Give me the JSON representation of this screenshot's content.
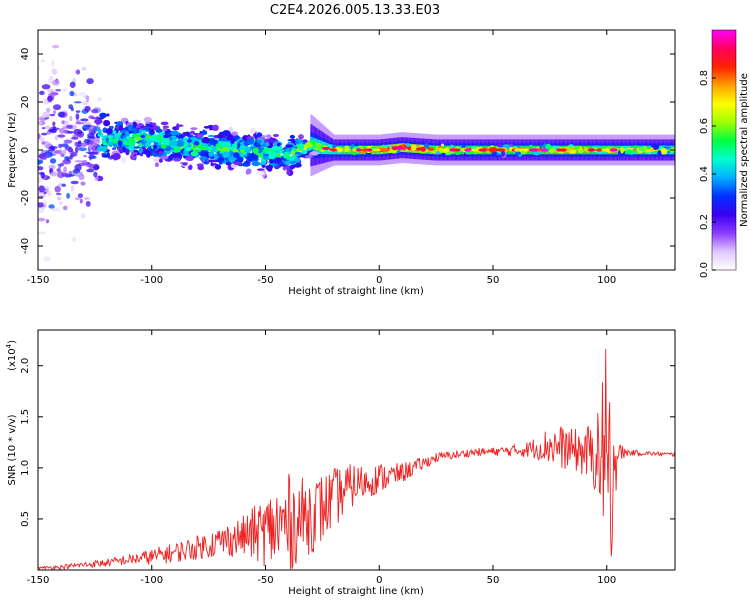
{
  "title": "C2E4.2026.005.13.33.E03",
  "chart_data": [
    {
      "type": "heatmap",
      "xlabel": "Height of straight line (km)",
      "ylabel": "Frequency (Hz)",
      "xlim": [
        -150,
        130
      ],
      "ylim": [
        -50,
        50
      ],
      "xticks": [
        -150,
        -100,
        -50,
        0,
        50,
        100
      ],
      "yticks": [
        -40,
        -20,
        0,
        20,
        40
      ],
      "colorbar": {
        "label": "Normalized spectral amplitude",
        "range": [
          0,
          1
        ],
        "ticks": [
          "0.0",
          "0.2",
          "0.4",
          "0.6",
          "0.8"
        ],
        "colors": [
          "#ffffff",
          "#e0c8ff",
          "#8a3cff",
          "#3a00f0",
          "#0030ff",
          "#00b0ff",
          "#00ffd0",
          "#00ff40",
          "#a0ff00",
          "#ffff00",
          "#ffa000",
          "#ff2000",
          "#ff0060",
          "#ff00ff"
        ]
      },
      "description_points": [
        {
          "x": -145,
          "center": 0,
          "spread": 45,
          "level": 0.25
        },
        {
          "x": -130,
          "center": 3,
          "spread": 38,
          "level": 0.3
        },
        {
          "x": -120,
          "center": 5,
          "spread": 10,
          "level": 0.45
        },
        {
          "x": -100,
          "center": 4,
          "spread": 9,
          "level": 0.5
        },
        {
          "x": -80,
          "center": 1,
          "spread": 9,
          "level": 0.5
        },
        {
          "x": -60,
          "center": 0,
          "spread": 9,
          "level": 0.5
        },
        {
          "x": -40,
          "center": -2,
          "spread": 9,
          "level": 0.5
        },
        {
          "x": -30,
          "center": 2,
          "spread": 4,
          "level": 0.6
        },
        {
          "x": -20,
          "center": 0,
          "spread": 2,
          "level": 0.7
        },
        {
          "x": 0,
          "center": 0,
          "spread": 2,
          "level": 0.85
        },
        {
          "x": 10,
          "center": 1,
          "spread": 2,
          "level": 0.9
        },
        {
          "x": 25,
          "center": 0,
          "spread": 2,
          "level": 0.8
        },
        {
          "x": 50,
          "center": 0,
          "spread": 2,
          "level": 0.75
        },
        {
          "x": 75,
          "center": 0,
          "spread": 2,
          "level": 0.8
        },
        {
          "x": 100,
          "center": 0,
          "spread": 2,
          "level": 0.75
        },
        {
          "x": 130,
          "center": 0,
          "spread": 2,
          "level": 0.7
        }
      ]
    },
    {
      "type": "line",
      "xlabel": "Height of straight line (km)",
      "ylabel": "SNR (10 * v/v)",
      "yscale_label": "(x10",
      "yscale_exponent": "4",
      "xlim": [
        -150,
        130
      ],
      "ylim": [
        0,
        2.35
      ],
      "xticks": [
        -150,
        -100,
        -50,
        0,
        50,
        100
      ],
      "yticks": [
        "0.5",
        "1.0",
        "1.5",
        "2.0"
      ],
      "series": [
        {
          "color": "#ee2222",
          "x": [
            -150,
            -140,
            -130,
            -120,
            -110,
            -100,
            -90,
            -80,
            -70,
            -60,
            -50,
            -40,
            -35,
            -30,
            -25,
            -20,
            -15,
            -10,
            -5,
            0,
            5,
            10,
            15,
            20,
            25,
            30,
            35,
            40,
            50,
            60,
            65,
            70,
            75,
            80,
            85,
            90,
            95,
            100,
            102,
            105,
            110,
            120,
            130
          ],
          "y": [
            0.02,
            0.03,
            0.05,
            0.07,
            0.1,
            0.13,
            0.17,
            0.22,
            0.28,
            0.33,
            0.38,
            0.45,
            0.5,
            0.55,
            0.6,
            0.7,
            0.78,
            0.85,
            0.86,
            0.9,
            0.92,
            0.95,
            1.0,
            1.05,
            1.1,
            1.12,
            1.13,
            1.15,
            1.16,
            1.17,
            1.18,
            1.2,
            1.22,
            1.2,
            1.18,
            1.15,
            1.12,
            1.05,
            1.0,
            1.15,
            1.15,
            1.14,
            1.13
          ],
          "noise_amplitude": [
            0.01,
            0.02,
            0.03,
            0.04,
            0.05,
            0.08,
            0.1,
            0.12,
            0.15,
            0.2,
            0.35,
            0.5,
            0.4,
            0.4,
            0.35,
            0.3,
            0.25,
            0.2,
            0.15,
            0.15,
            0.12,
            0.1,
            0.08,
            0.06,
            0.05,
            0.04,
            0.04,
            0.04,
            0.04,
            0.06,
            0.08,
            0.12,
            0.2,
            0.22,
            0.2,
            0.25,
            0.35,
            0.8,
            0.9,
            0.1,
            0.03,
            0.02,
            0.02
          ]
        }
      ]
    }
  ]
}
